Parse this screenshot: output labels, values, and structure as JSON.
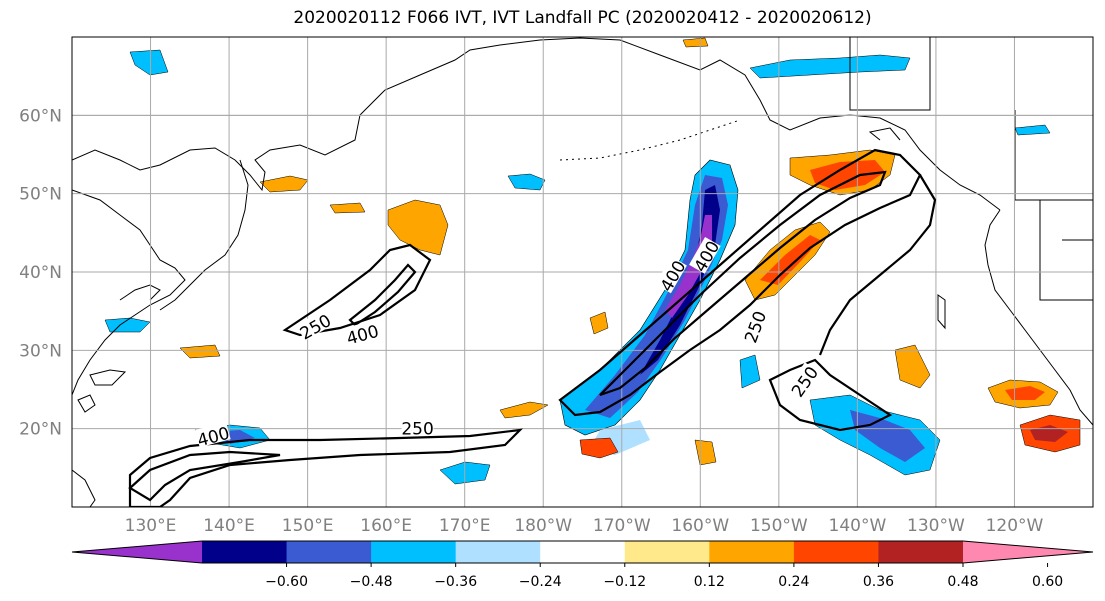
{
  "title": "2020020112 F066 IVT, IVT Landfall PC (2020020412 - 2020020612)",
  "map": {
    "lon_range": [
      120,
      250
    ],
    "lat_range": [
      10,
      70
    ],
    "lat_ticks": [
      {
        "value": 20,
        "label": "20°N"
      },
      {
        "value": 30,
        "label": "30°N"
      },
      {
        "value": 40,
        "label": "40°N"
      },
      {
        "value": 50,
        "label": "50°N"
      },
      {
        "value": 60,
        "label": "60°N"
      }
    ],
    "lon_ticks": [
      {
        "value": 130,
        "label": "130°E"
      },
      {
        "value": 140,
        "label": "140°E"
      },
      {
        "value": 150,
        "label": "150°E"
      },
      {
        "value": 160,
        "label": "160°E"
      },
      {
        "value": 170,
        "label": "170°E"
      },
      {
        "value": 180,
        "label": "180°W"
      },
      {
        "value": 190,
        "label": "170°W"
      },
      {
        "value": 200,
        "label": "160°W"
      },
      {
        "value": 210,
        "label": "150°W"
      },
      {
        "value": 220,
        "label": "140°W"
      },
      {
        "value": 230,
        "label": "130°W"
      },
      {
        "value": 240,
        "label": "120°W"
      }
    ],
    "grid": true,
    "contour_labels": [
      {
        "text": "250",
        "lon": 151,
        "lat": 33,
        "rotate": -30
      },
      {
        "text": "400",
        "lon": 157,
        "lat": 32,
        "rotate": -15
      },
      {
        "text": "250",
        "lon": 164,
        "lat": 20,
        "rotate": 0
      },
      {
        "text": "400",
        "lon": 138,
        "lat": 19,
        "rotate": -15
      },
      {
        "text": "400",
        "lon": 196.5,
        "lat": 39.5,
        "rotate": -60
      },
      {
        "text": "400",
        "lon": 200.8,
        "lat": 42,
        "rotate": -60
      },
      {
        "text": "250",
        "lon": 207,
        "lat": 33,
        "rotate": -70
      },
      {
        "text": "250",
        "lon": 213.3,
        "lat": 26,
        "rotate": -55
      }
    ]
  },
  "colorbar": {
    "colors": [
      "#9932cc",
      "#00008b",
      "#3b5bd3",
      "#00bfff",
      "#b0e0ff",
      "#ffffff",
      "#ffe98a",
      "#ffa500",
      "#ff4500",
      "#b22222",
      "#ff88b0"
    ],
    "tick_labels": [
      "−0.60",
      "−0.48",
      "−0.36",
      "−0.24",
      "−0.12",
      "0.12",
      "0.24",
      "0.36",
      "0.48",
      "0.60"
    ]
  }
}
